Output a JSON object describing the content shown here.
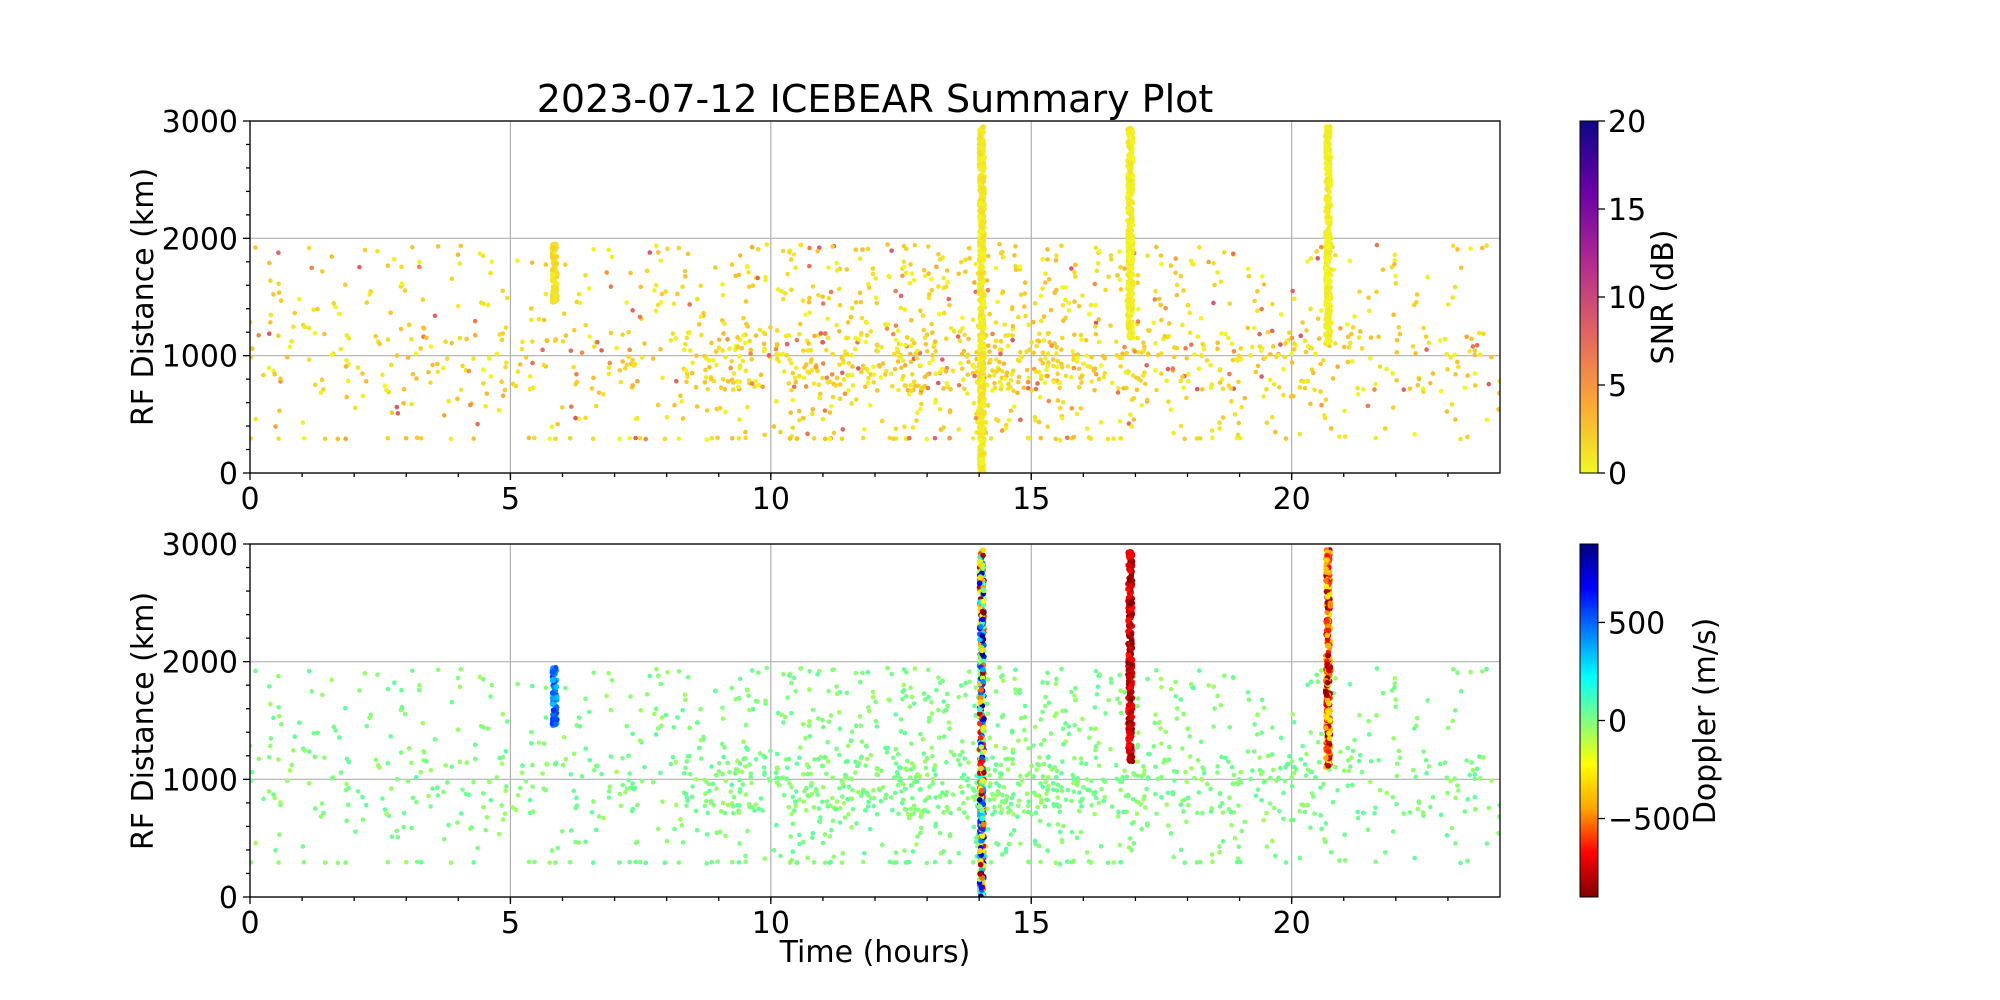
{
  "chart_data": {
    "type": "scatter",
    "title": "2023-07-12 ICEBEAR Summary Plot",
    "xlabel": "Time (hours)",
    "xlim": [
      0,
      24
    ],
    "xticks": [
      "0",
      "5",
      "10",
      "15",
      "20"
    ],
    "grid": true,
    "panels": [
      {
        "ylabel": "RF Distance (km)",
        "ylim": [
          0,
          3000
        ],
        "yticks": [
          "0",
          "1000",
          "2000",
          "3000"
        ],
        "color_variable": "SNR",
        "colorbar": {
          "label": "SNR (dB)",
          "range": [
            0,
            20
          ],
          "ticks": [
            "0",
            "5",
            "10",
            "15",
            "20"
          ],
          "colormap": "plasma_r",
          "colors": [
            "#f0f921",
            "#fca636",
            "#e16462",
            "#b12a90",
            "#6a00a8",
            "#0d0887"
          ]
        }
      },
      {
        "ylabel": "RF Distance (km)",
        "ylim": [
          0,
          3000
        ],
        "yticks": [
          "0",
          "1000",
          "2000",
          "3000"
        ],
        "color_variable": "Doppler",
        "colorbar": {
          "label": "Doppler (m/s)",
          "range": [
            -900,
            900
          ],
          "ticks": [
            "500",
            "0",
            "−500"
          ],
          "tick_values": [
            500,
            0,
            -500
          ],
          "colormap": "jet_r",
          "colors": [
            "#800000",
            "#ff0000",
            "#ffa500",
            "#ffff00",
            "#80ff80",
            "#00ffff",
            "#0080ff",
            "#0000ff",
            "#000080"
          ]
        }
      }
    ],
    "series": [
      {
        "kind": "background_echoes",
        "x_range": [
          0,
          24
        ],
        "y_range": [
          280,
          1950
        ],
        "point_count": 1600,
        "density_peak_hours": [
          10,
          17
        ],
        "snr_typical": [
          0,
          6
        ],
        "doppler_typical": [
          -60,
          60
        ]
      },
      {
        "kind": "streak",
        "x": 5.85,
        "y_range": [
          1450,
          1950
        ],
        "snr": [
          0.5,
          2
        ],
        "doppler": [
          300,
          600
        ]
      },
      {
        "kind": "streak",
        "x": 14.05,
        "y_range": [
          0,
          2950
        ],
        "snr": [
          0,
          1.5
        ],
        "doppler": [
          -900,
          900
        ]
      },
      {
        "kind": "streak",
        "x": 16.9,
        "y_range": [
          1150,
          2950
        ],
        "snr": [
          0,
          1
        ],
        "doppler": [
          -900,
          -650
        ]
      },
      {
        "kind": "streak",
        "x": 20.7,
        "y_range": [
          1100,
          2950
        ],
        "snr": [
          0,
          1
        ],
        "doppler": [
          -900,
          -250
        ]
      }
    ]
  }
}
